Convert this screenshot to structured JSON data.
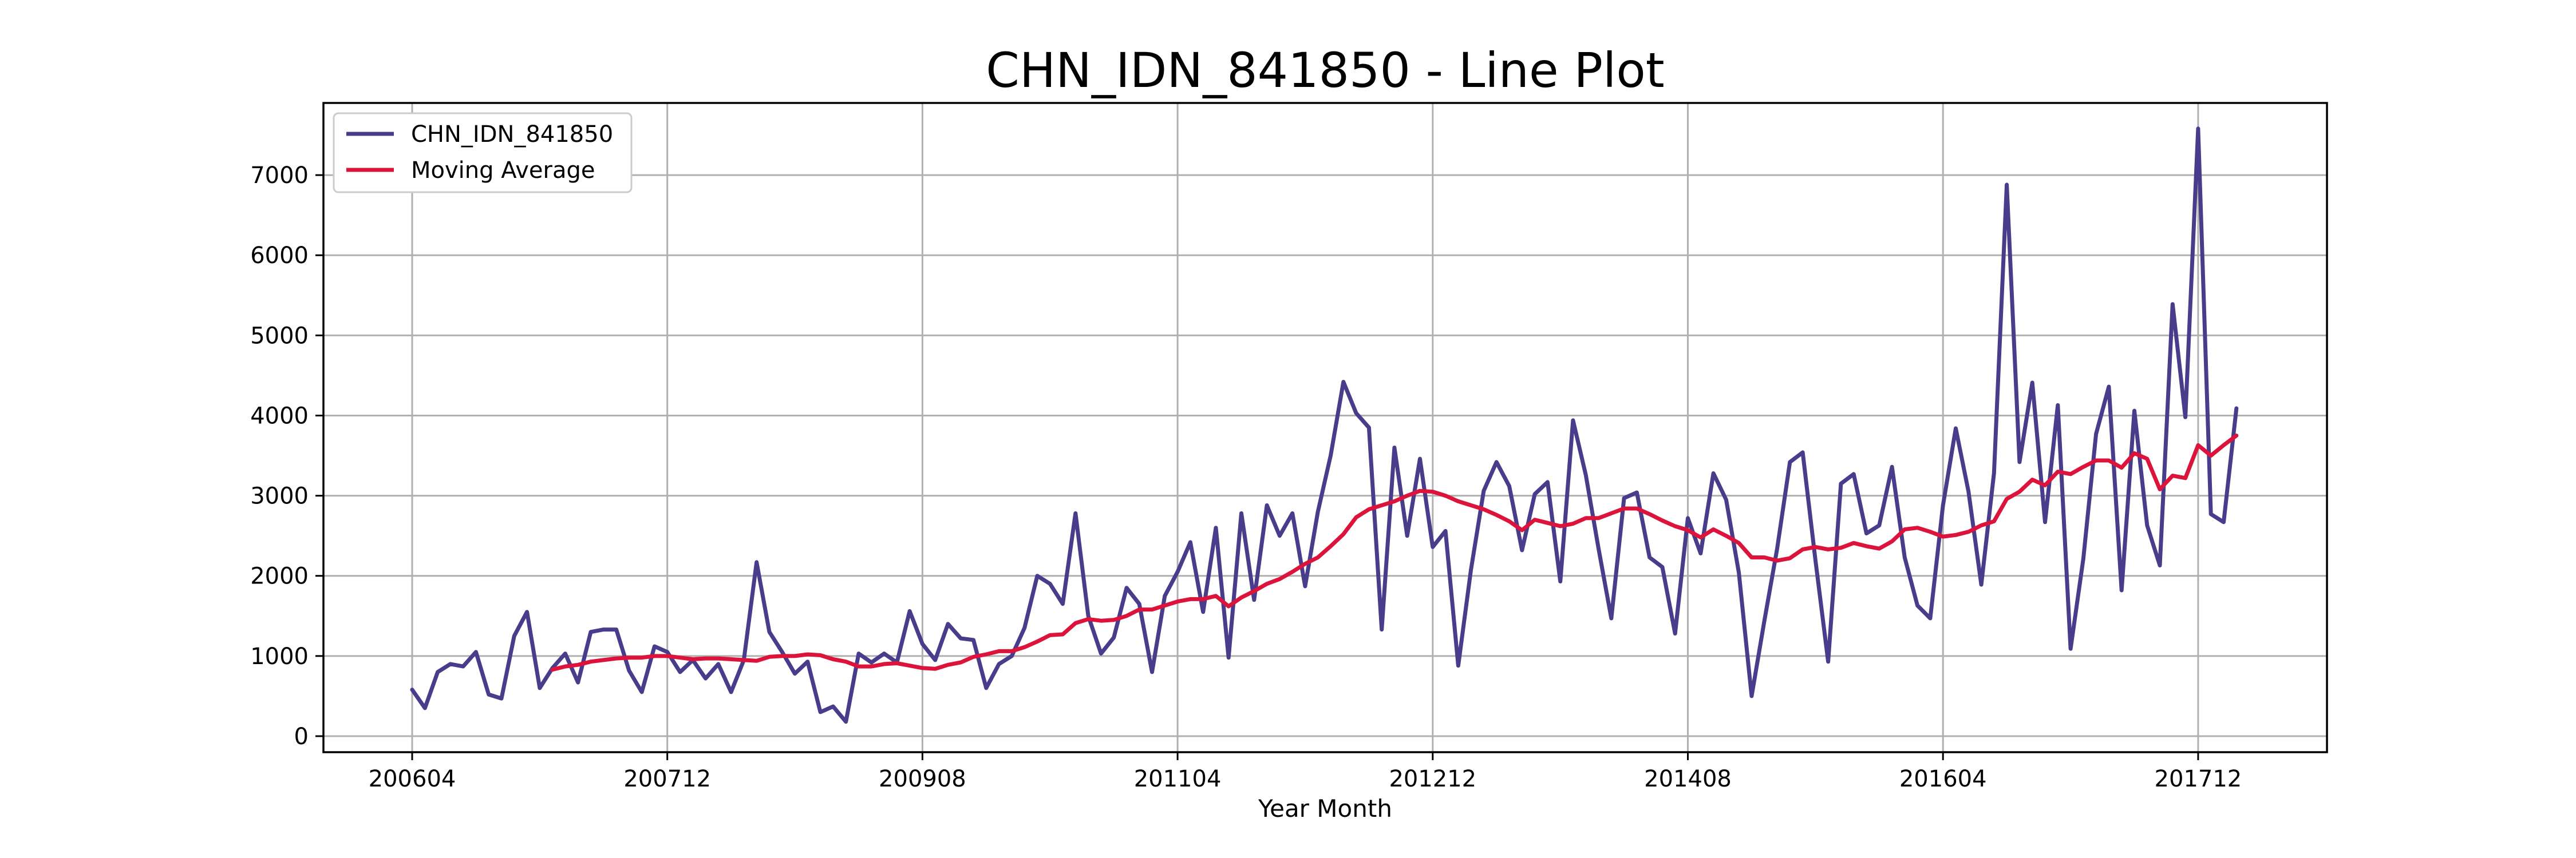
{
  "chart_data": {
    "type": "line",
    "title": "CHN_IDN_841850 - Line Plot",
    "xlabel": "Year Month",
    "ylabel": "",
    "ylim": [
      -200,
      7900
    ],
    "yticks": [
      0,
      1000,
      2000,
      3000,
      4000,
      5000,
      6000,
      7000
    ],
    "xticks": [
      {
        "index": 0,
        "label": "200604"
      },
      {
        "index": 20,
        "label": "200712"
      },
      {
        "index": 40,
        "label": "200908"
      },
      {
        "index": 60,
        "label": "201104"
      },
      {
        "index": 80,
        "label": "201212"
      },
      {
        "index": 100,
        "label": "201408"
      },
      {
        "index": 120,
        "label": "201604"
      },
      {
        "index": 140,
        "label": "201712"
      }
    ],
    "grid": true,
    "legend_position": "top-left",
    "x_start": "200604",
    "series": [
      {
        "name": "CHN_IDN_841850",
        "color": "#483d8b",
        "values": [
          580,
          350,
          800,
          900,
          870,
          1050,
          520,
          470,
          1250,
          1550,
          600,
          850,
          1030,
          670,
          1300,
          1330,
          1330,
          820,
          550,
          1120,
          1050,
          800,
          950,
          720,
          900,
          550,
          950,
          2170,
          1300,
          1050,
          780,
          930,
          300,
          370,
          180,
          1030,
          920,
          1030,
          920,
          1560,
          1150,
          950,
          1400,
          1220,
          1200,
          600,
          900,
          1000,
          1350,
          2000,
          1900,
          1650,
          2780,
          1500,
          1030,
          1230,
          1850,
          1650,
          800,
          1750,
          2050,
          2420,
          1550,
          2600,
          980,
          2780,
          1700,
          2880,
          2500,
          2780,
          1870,
          2800,
          3500,
          4420,
          4030,
          3850,
          1330,
          3600,
          2500,
          3460,
          2360,
          2560,
          880,
          2080,
          3060,
          3420,
          3120,
          2320,
          3020,
          3170,
          1930,
          3940,
          3260,
          2340,
          1470,
          2970,
          3040,
          2230,
          2110,
          1280,
          2720,
          2280,
          3280,
          2950,
          2040,
          500,
          1440,
          2340,
          3420,
          3540,
          2200,
          930,
          3150,
          3270,
          2530,
          2630,
          3360,
          2230,
          1630,
          1470,
          2880,
          3840,
          3050,
          1890,
          3280,
          6880,
          3420,
          4410,
          2670,
          4130,
          1090,
          2210,
          3770,
          4360,
          1820,
          4060,
          2630,
          2130,
          5390,
          3980,
          7580,
          2770,
          2670,
          4090
        ]
      },
      {
        "name": "Moving Average",
        "color": "#dc143c",
        "start_index": 11,
        "values": [
          830,
          870,
          890,
          930,
          950,
          970,
          980,
          980,
          1000,
          1000,
          980,
          960,
          970,
          970,
          960,
          950,
          940,
          990,
          1000,
          1000,
          1020,
          1010,
          960,
          930,
          870,
          870,
          900,
          910,
          880,
          850,
          840,
          890,
          920,
          990,
          1020,
          1060,
          1060,
          1110,
          1180,
          1260,
          1270,
          1410,
          1460,
          1440,
          1450,
          1500,
          1580,
          1580,
          1630,
          1680,
          1710,
          1710,
          1750,
          1620,
          1730,
          1810,
          1900,
          1960,
          2050,
          2150,
          2230,
          2370,
          2520,
          2730,
          2830,
          2880,
          2930,
          3000,
          3060,
          3050,
          3000,
          2930,
          2880,
          2830,
          2760,
          2680,
          2570,
          2700,
          2660,
          2620,
          2650,
          2720,
          2720,
          2780,
          2840,
          2840,
          2770,
          2690,
          2620,
          2570,
          2480,
          2580,
          2500,
          2410,
          2230,
          2230,
          2190,
          2220,
          2330,
          2360,
          2330,
          2350,
          2410,
          2370,
          2340,
          2430,
          2580,
          2600,
          2550,
          2490,
          2510,
          2550,
          2630,
          2680,
          2960,
          3050,
          3200,
          3130,
          3300,
          3270,
          3360,
          3440,
          3440,
          3350,
          3530,
          3460,
          3080,
          3250,
          3220,
          3630,
          3500,
          3630,
          3750
        ]
      }
    ]
  }
}
